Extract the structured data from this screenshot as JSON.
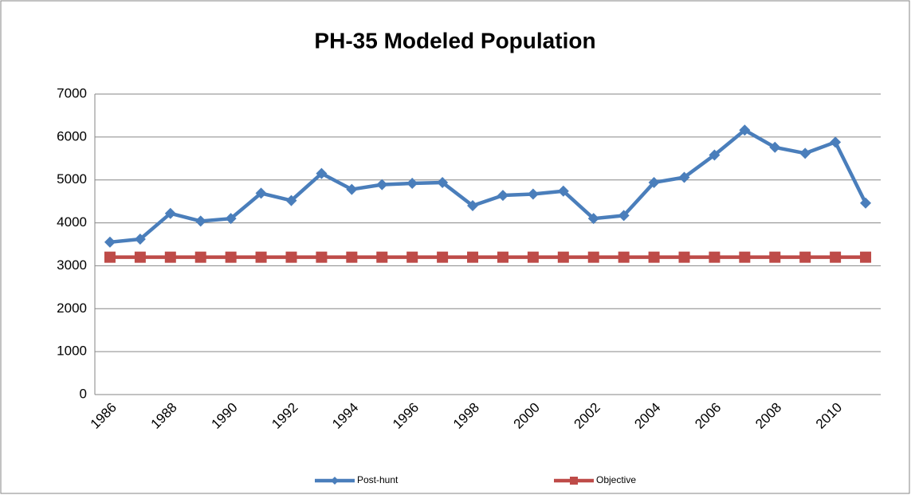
{
  "chart_data": {
    "type": "line",
    "title": "PH-35 Modeled Population",
    "categories": [
      "1986",
      null,
      "1988",
      null,
      "1990",
      null,
      "1992",
      null,
      "1994",
      null,
      "1996",
      null,
      "1998",
      null,
      "2000",
      null,
      "2002",
      null,
      "2004",
      null,
      "2006",
      null,
      "2008",
      null,
      "2010",
      null
    ],
    "series": [
      {
        "name": "Post-hunt",
        "color": "#4a7ebb",
        "marker": "diamond",
        "values": [
          3550,
          3620,
          4220,
          4040,
          4100,
          4690,
          4520,
          5150,
          4780,
          4890,
          4920,
          4940,
          4400,
          4640,
          4670,
          4740,
          4100,
          4170,
          4940,
          5060,
          5580,
          6160,
          5760,
          5620,
          5880,
          4460
        ]
      },
      {
        "name": "Objective",
        "color": "#be4b48",
        "marker": "square",
        "values": [
          3200,
          3200,
          3200,
          3200,
          3200,
          3200,
          3200,
          3200,
          3200,
          3200,
          3200,
          3200,
          3200,
          3200,
          3200,
          3200,
          3200,
          3200,
          3200,
          3200,
          3200,
          3200,
          3200,
          3200,
          3200,
          3200
        ]
      }
    ],
    "ylim": [
      0,
      7000
    ],
    "yticks": [
      0,
      1000,
      2000,
      3000,
      4000,
      5000,
      6000,
      7000
    ],
    "grid": true,
    "legend": "bottom"
  }
}
